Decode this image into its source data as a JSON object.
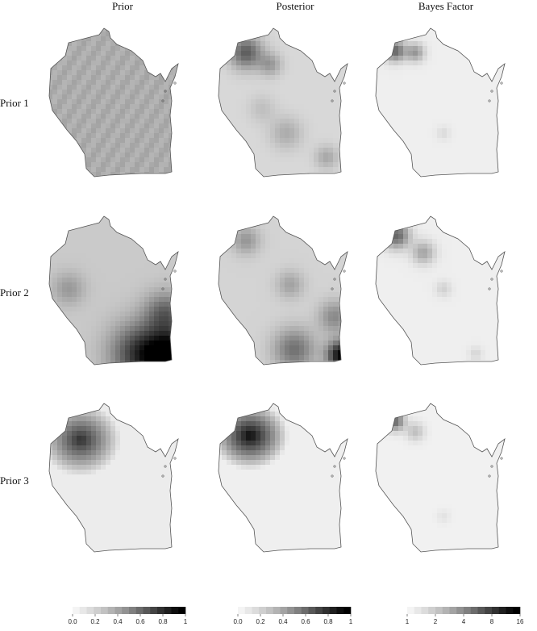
{
  "columns": {
    "prior": "Prior",
    "posterior": "Posterior",
    "bayes": "Bayes Factor"
  },
  "rows": {
    "r1": "Prior 1",
    "r2": "Prior 2",
    "r3": "Prior 3"
  },
  "legends": {
    "prob": {
      "steps": [
        "#f4f4f4",
        "#e8e8e8",
        "#dcdcdc",
        "#cfcfcf",
        "#c2c2c2",
        "#b3b3b3",
        "#a3a3a3",
        "#929292",
        "#808080",
        "#6c6c6c",
        "#585858",
        "#444444",
        "#313131",
        "#1f1f1f",
        "#0e0e0e",
        "#000000"
      ],
      "ticks": [
        "0.0",
        "0.2",
        "0.4",
        "0.6",
        "0.8",
        "1"
      ]
    },
    "bf": {
      "steps": [
        "#f4f4f4",
        "#e8e8e8",
        "#dcdcdc",
        "#cfcfcf",
        "#c2c2c2",
        "#b3b3b3",
        "#a3a3a3",
        "#929292",
        "#808080",
        "#6c6c6c",
        "#585858",
        "#444444",
        "#313131",
        "#1f1f1f",
        "#0e0e0e",
        "#000000"
      ],
      "ticks": [
        "1",
        "2",
        "4",
        "8",
        "16"
      ]
    }
  },
  "colors": {
    "outline": "#555555",
    "background": "#ffffff"
  }
}
